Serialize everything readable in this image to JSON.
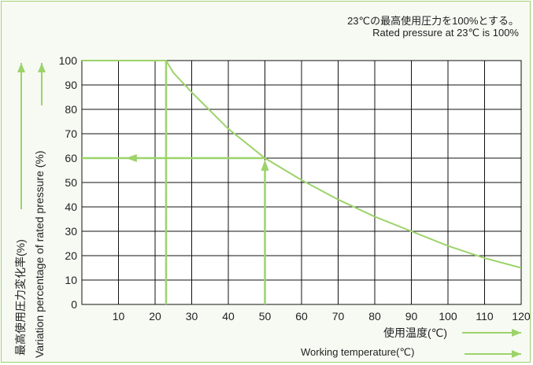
{
  "note_jp": "23℃の最高使用圧力を100%とする。",
  "note_en": "Rated pressure at 23℃ is 100%",
  "chart_data": {
    "type": "line",
    "xlabel_jp": "使用温度(℃)",
    "xlabel_en": "Working temperature(℃)",
    "ylabel_jp": "最高使用圧力変化率(%)",
    "ylabel_en": "Variation percentage of rated pressure (%)",
    "xlim": [
      0,
      120
    ],
    "ylim": [
      0,
      100
    ],
    "x_ticks": [
      10,
      20,
      30,
      40,
      50,
      60,
      70,
      80,
      90,
      100,
      110,
      120
    ],
    "y_ticks": [
      0,
      10,
      20,
      30,
      40,
      50,
      60,
      70,
      80,
      90,
      100
    ],
    "grid": true,
    "series": [
      {
        "x": [
          0,
          23,
          25,
          30,
          40,
          50,
          60,
          70,
          80,
          90,
          100,
          110,
          120
        ],
        "y": [
          100,
          100,
          95,
          87,
          72,
          60,
          51,
          43,
          36,
          30,
          24,
          19,
          15
        ]
      }
    ],
    "annotations": {
      "rated_line_x": 23,
      "example_x": 50,
      "example_y": 60
    },
    "color": "#9dd36a"
  }
}
